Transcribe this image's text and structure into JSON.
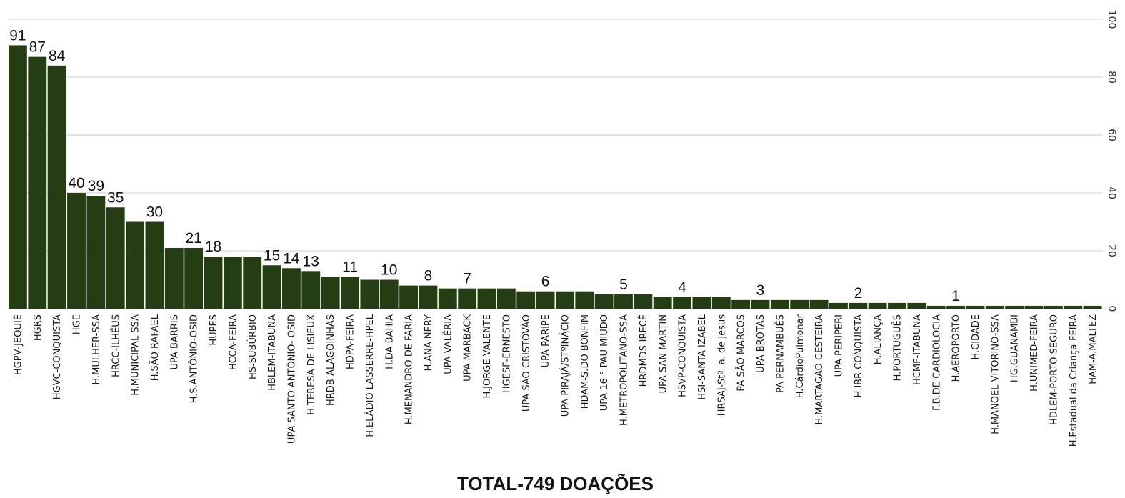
{
  "chart_data": {
    "type": "bar",
    "title": "TOTAL-749 DOAÇÕES",
    "xlabel": "",
    "ylabel": "",
    "ylim": [
      0,
      100
    ],
    "yticks": [
      0,
      20,
      40,
      60,
      80,
      100
    ],
    "grid": true,
    "legend": "none",
    "bar_color": "#253d12",
    "categories": [
      "HGPV-JEQUIÉ",
      "HGRS",
      "HGVC-CONQUISTA",
      "HGE",
      "H.MULHER-SSA",
      "HRCC-ILHÉUS",
      "H.MUNICIPAL SSA",
      "H.SÃO RAFAEL",
      "UPA BARRIS",
      "H.S.ANTÔNIO-OSID",
      "HUPES",
      "HCCA-FEIRA",
      "HS-SUBÚRBIO",
      "HBLEM-ITABUNA",
      "UPA SANTO ANTÔNIO- OSID",
      "H.TERESA DE LISIEUX",
      "HRDB-ALAGOINHAS",
      "HDPA-FEIRA",
      "H.ELÁDIO LASSERRE-HPEL",
      "H.DA BAHIA",
      "H.MENANDRO DE FARIA",
      "H.ANA NERY",
      "UPA VALÉRIA",
      "UPA MARBACK",
      "H.JORGE VALENTE",
      "HGESF-ERNESTO",
      "UPA SÃO CRISTÓVÃO",
      "UPA PARIPE",
      "UPA PIRAJÁ/STºINÁCIO",
      "HDAM-S.DO BONFIM",
      "UPA 16 ° PAU MIÚDO",
      "H.METROPOLITANO-SSA",
      "HRDMDS-IRECÊ",
      "UPA SAN MARTIN",
      "HSVP-CONQUISTA",
      "HSI-SANTA IZABEL",
      "HRSAJ-Stº. a. de Jesus",
      "PA SÃO MARCOS",
      "UPA BROTAS",
      "PA PERNAMBUÉS",
      "H.CárdioPulmonar",
      "H.MARTAGÃO GESTEIRA",
      "UPA PERIPERI",
      "H.IBR-CONQUISTA",
      "H.ALIANÇA",
      "H.PORTUGUÊS",
      "HCMF-ITABUNA",
      "F.B.DE CARDIOLOCIA",
      "H.AEROPORTO",
      "H.CIDADE",
      "H.MANOEL VITORINO-SSA",
      "HG.GUANAMBI",
      "H.UNIMED-FEIRA",
      "HDLEM-PORTO SEGURO",
      "H.Estadual da Criança-FEIRA",
      "HAM-A.MALTEZ"
    ],
    "values": [
      91,
      87,
      84,
      40,
      39,
      35,
      30,
      30,
      21,
      21,
      18,
      18,
      18,
      15,
      14,
      13,
      11,
      11,
      10,
      10,
      8,
      8,
      7,
      7,
      7,
      7,
      6,
      6,
      6,
      6,
      5,
      5,
      5,
      4,
      4,
      4,
      4,
      3,
      3,
      3,
      3,
      3,
      2,
      2,
      2,
      2,
      2,
      1,
      1,
      1,
      1,
      1,
      1,
      1,
      1,
      1
    ],
    "data_labels": [
      {
        "index": 0,
        "text": "91"
      },
      {
        "index": 1,
        "text": "87"
      },
      {
        "index": 2,
        "text": "84"
      },
      {
        "index": 3,
        "text": "40"
      },
      {
        "index": 4,
        "text": "39"
      },
      {
        "index": 5,
        "text": "35"
      },
      {
        "index": 7,
        "text": "30"
      },
      {
        "index": 9,
        "text": "21"
      },
      {
        "index": 10,
        "text": "18"
      },
      {
        "index": 13,
        "text": "15"
      },
      {
        "index": 14,
        "text": "14"
      },
      {
        "index": 15,
        "text": "13"
      },
      {
        "index": 17,
        "text": "11"
      },
      {
        "index": 19,
        "text": "10"
      },
      {
        "index": 21,
        "text": "8"
      },
      {
        "index": 23,
        "text": "7"
      },
      {
        "index": 27,
        "text": "6"
      },
      {
        "index": 31,
        "text": "5"
      },
      {
        "index": 34,
        "text": "4"
      },
      {
        "index": 38,
        "text": "3"
      },
      {
        "index": 43,
        "text": "2"
      },
      {
        "index": 48,
        "text": "1"
      }
    ]
  }
}
